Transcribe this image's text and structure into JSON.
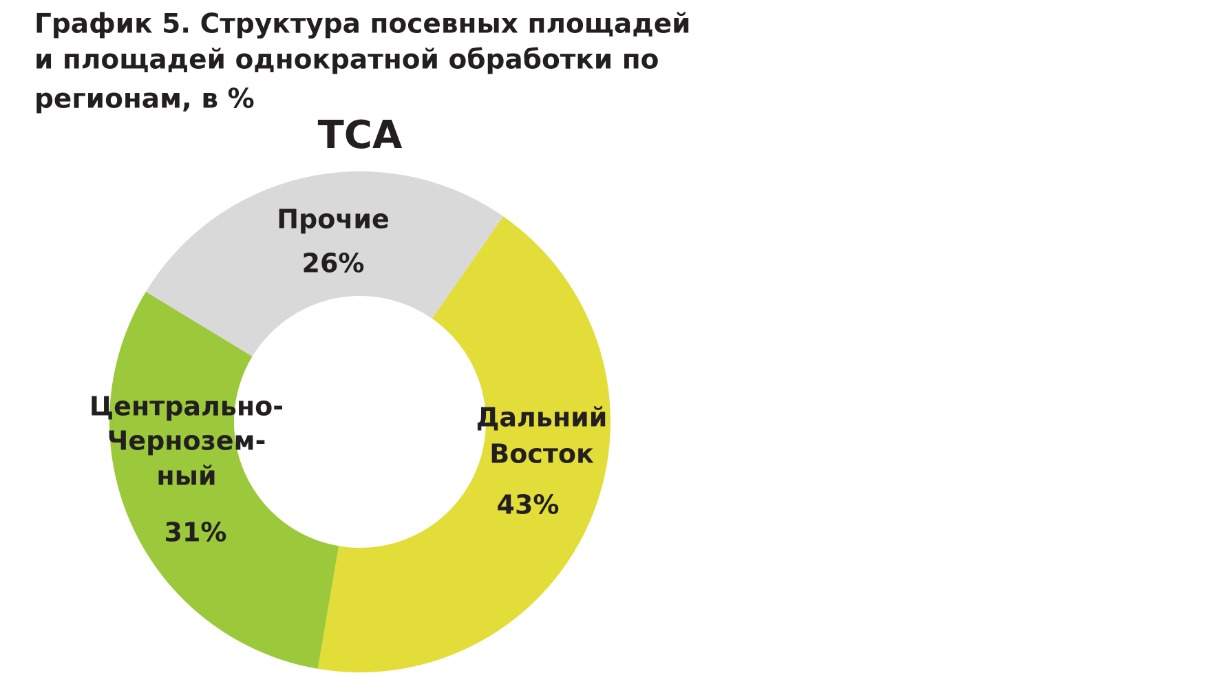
{
  "chart_data": {
    "type": "donut",
    "title": [
      "График 5. Структура посевных площадей",
      "и площадей однократной обработки по",
      "регионам, в %"
    ],
    "subtitle": "ТСА",
    "categories": [
      [
        "Дальний",
        "Восток"
      ],
      [
        "Центрально-",
        "Чернозем-",
        "ный"
      ],
      [
        "Прочие"
      ]
    ],
    "values": [
      43,
      31,
      26
    ],
    "value_labels": [
      "43%",
      "31%",
      "26%"
    ],
    "colors": [
      "#e3dd3a",
      "#9bc93b",
      "#d9d9d9"
    ]
  }
}
